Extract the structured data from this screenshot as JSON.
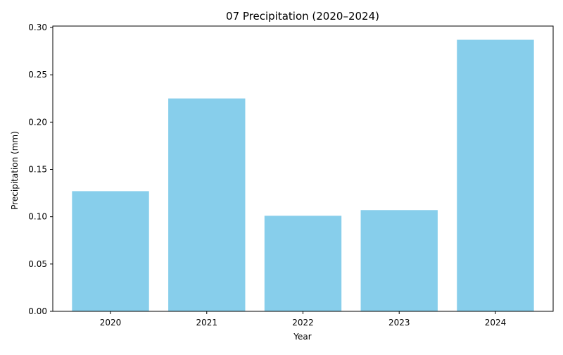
{
  "chart_data": {
    "type": "bar",
    "title": "07 Precipitation (2020–2024)",
    "xlabel": "Year",
    "ylabel": "Precipitation (mm)",
    "categories": [
      "2020",
      "2021",
      "2022",
      "2023",
      "2024"
    ],
    "values": [
      0.127,
      0.225,
      0.101,
      0.107,
      0.287
    ],
    "ylim": [
      0,
      0.3
    ],
    "yticks": [
      0.0,
      0.05,
      0.1,
      0.15,
      0.2,
      0.25,
      0.3
    ],
    "ytick_labels": [
      "0.00",
      "0.05",
      "0.10",
      "0.15",
      "0.20",
      "0.25",
      "0.30"
    ],
    "bar_color": "#87ceeb",
    "grid": false,
    "legend": "none"
  }
}
